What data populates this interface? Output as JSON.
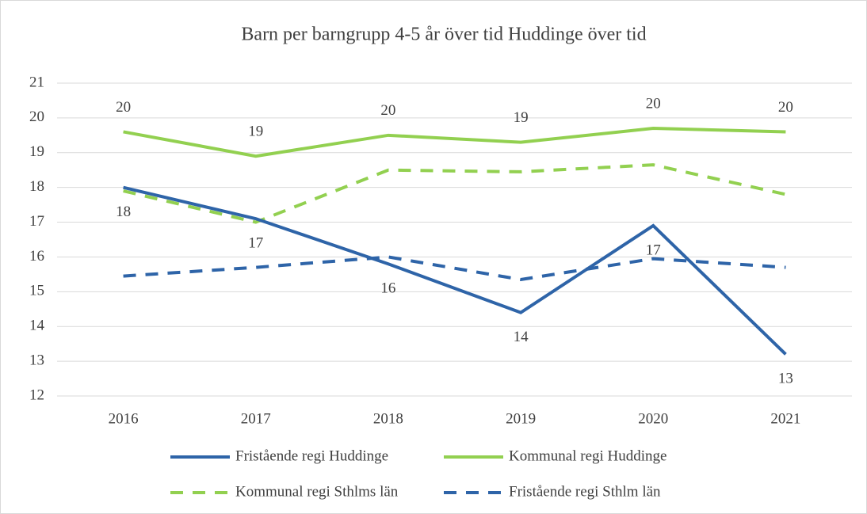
{
  "chart_data": {
    "type": "line",
    "title": "Barn per barngrupp 4-5 år över tid Huddinge över tid",
    "categories": [
      "2016",
      "2017",
      "2018",
      "2019",
      "2020",
      "2021"
    ],
    "series": [
      {
        "name": "Fristående regi Huddinge",
        "color": "#2e64a8",
        "dashed": false,
        "label_position": "below",
        "values": [
          18.0,
          17.1,
          15.8,
          14.4,
          16.9,
          13.2
        ],
        "value_labels": [
          "18",
          "17",
          "16",
          "14",
          "17",
          "13"
        ]
      },
      {
        "name": "Kommunal regi Huddinge",
        "color": "#92d050",
        "dashed": false,
        "label_position": "above",
        "values": [
          19.6,
          18.9,
          19.5,
          19.3,
          19.7,
          19.6
        ],
        "value_labels": [
          "20",
          "19",
          "20",
          "19",
          "20",
          "20"
        ]
      },
      {
        "name": "Kommunal regi Sthlms län",
        "color": "#92d050",
        "dashed": true,
        "values": [
          17.9,
          17.0,
          18.5,
          18.45,
          18.65,
          17.8
        ]
      },
      {
        "name": "Fristående regi Sthlm län",
        "color": "#2e64a8",
        "dashed": true,
        "values": [
          15.45,
          15.7,
          16.0,
          15.35,
          15.95,
          15.7
        ]
      }
    ],
    "ylim": [
      12,
      21
    ],
    "yticks": [
      12,
      13,
      14,
      15,
      16,
      17,
      18,
      19,
      20,
      21
    ],
    "grid": true,
    "legend": "bottom"
  }
}
